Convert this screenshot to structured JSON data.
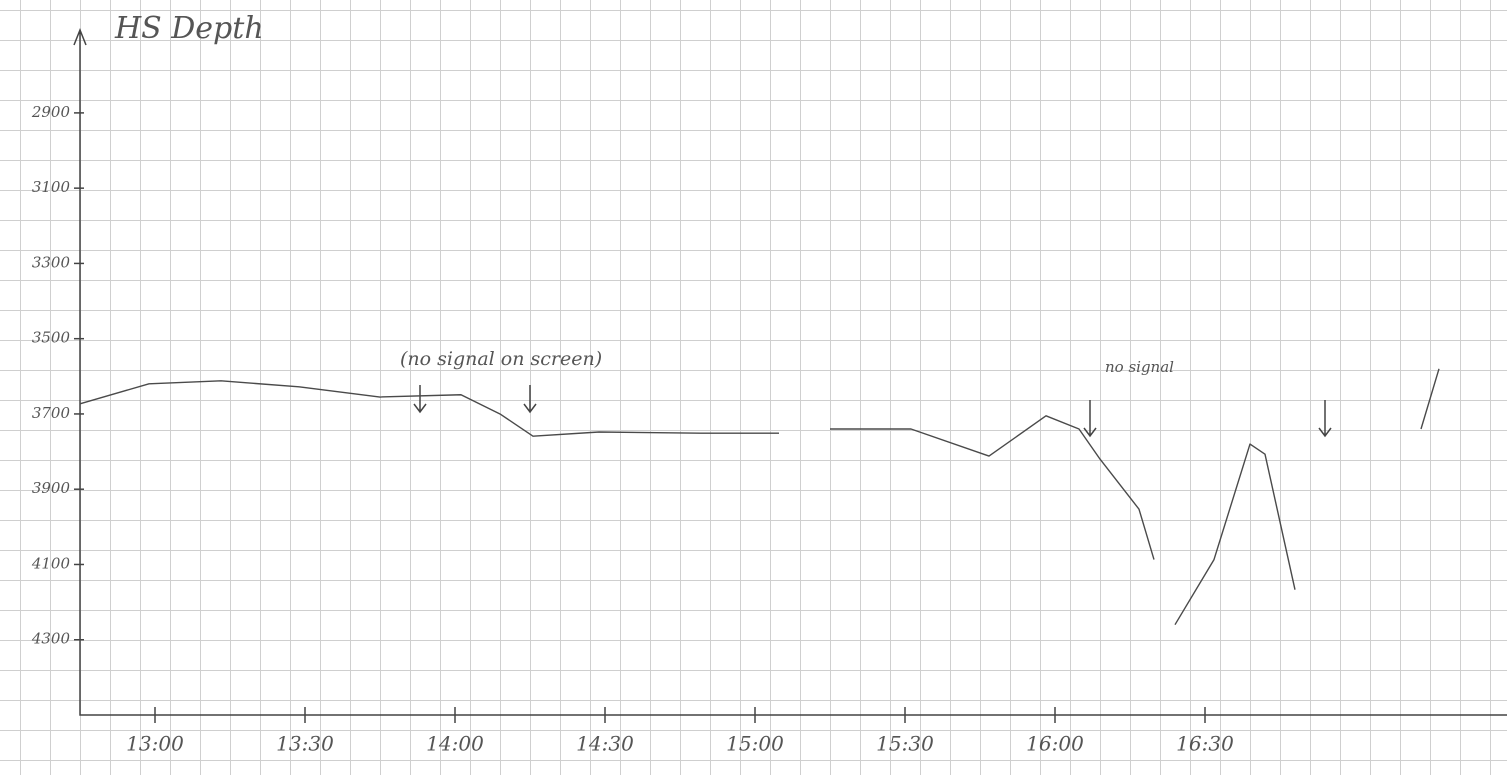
{
  "chart_data": {
    "type": "line",
    "title": "HS Depth",
    "x": [
      12.75,
      12.98,
      13.22,
      13.48,
      13.75,
      14.02,
      14.15,
      14.26,
      14.48,
      14.82,
      15.08,
      null,
      15.25,
      15.52,
      15.78,
      15.97,
      16.08,
      16.15,
      16.28,
      16.33,
      null,
      16.4,
      16.53,
      16.65,
      16.7,
      16.8,
      null,
      17.22,
      17.28
    ],
    "series": [
      {
        "color": "#4a4a4a",
        "values": [
          3673,
          3620,
          3612,
          3628,
          3655,
          3649,
          3700,
          3759,
          3748,
          3751,
          3751,
          null,
          3740,
          3740,
          3812,
          3705,
          3740,
          3820,
          3953,
          4087,
          null,
          4260,
          4087,
          3780,
          3807,
          4167,
          null,
          3740,
          3580
        ]
      }
    ],
    "xlim": [
      12.75,
      17.5
    ],
    "xticks": [
      {
        "value": 13,
        "label": "13:00"
      },
      {
        "value": 13.5,
        "label": "13:30"
      },
      {
        "value": 14,
        "label": "14:00"
      },
      {
        "value": 14.5,
        "label": "14:30"
      },
      {
        "value": 15,
        "label": "15:00"
      },
      {
        "value": 15.5,
        "label": "15:30"
      },
      {
        "value": 16,
        "label": "16:00"
      },
      {
        "value": 16.5,
        "label": "16:30"
      }
    ],
    "ylim": [
      4500,
      2600
    ],
    "yticks": [
      2900,
      3100,
      3300,
      3500,
      3700,
      3900,
      4100,
      4300
    ],
    "annotations": [
      "(no signal on screen)",
      "no signal"
    ]
  }
}
